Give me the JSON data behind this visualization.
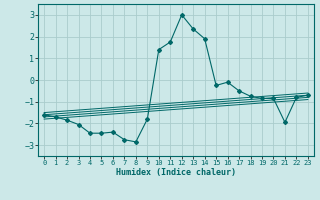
{
  "xlabel": "Humidex (Indice chaleur)",
  "background_color": "#cce8e8",
  "grid_color": "#aacccc",
  "line_color": "#006868",
  "xlim": [
    -0.5,
    23.5
  ],
  "ylim": [
    -3.5,
    3.5
  ],
  "yticks": [
    -3,
    -2,
    -1,
    0,
    1,
    2,
    3
  ],
  "xticks": [
    0,
    1,
    2,
    3,
    4,
    5,
    6,
    7,
    8,
    9,
    10,
    11,
    12,
    13,
    14,
    15,
    16,
    17,
    18,
    19,
    20,
    21,
    22,
    23
  ],
  "main_x": [
    0,
    1,
    2,
    3,
    4,
    5,
    6,
    7,
    8,
    9,
    10,
    11,
    12,
    13,
    14,
    15,
    16,
    17,
    18,
    19,
    20,
    21,
    22,
    23
  ],
  "main_y": [
    -1.6,
    -1.7,
    -1.85,
    -2.05,
    -2.45,
    -2.45,
    -2.4,
    -2.75,
    -2.85,
    -1.8,
    1.4,
    1.75,
    3.0,
    2.35,
    1.9,
    -0.25,
    -0.1,
    -0.5,
    -0.75,
    -0.85,
    -0.85,
    -1.95,
    -0.8,
    -0.7
  ],
  "ref_lines": [
    {
      "x": [
        0,
        23
      ],
      "y": [
        -1.5,
        -0.6
      ]
    },
    {
      "x": [
        0,
        23
      ],
      "y": [
        -1.6,
        -0.7
      ]
    },
    {
      "x": [
        0,
        23
      ],
      "y": [
        -1.7,
        -0.8
      ]
    },
    {
      "x": [
        0,
        23
      ],
      "y": [
        -1.8,
        -0.9
      ]
    }
  ]
}
